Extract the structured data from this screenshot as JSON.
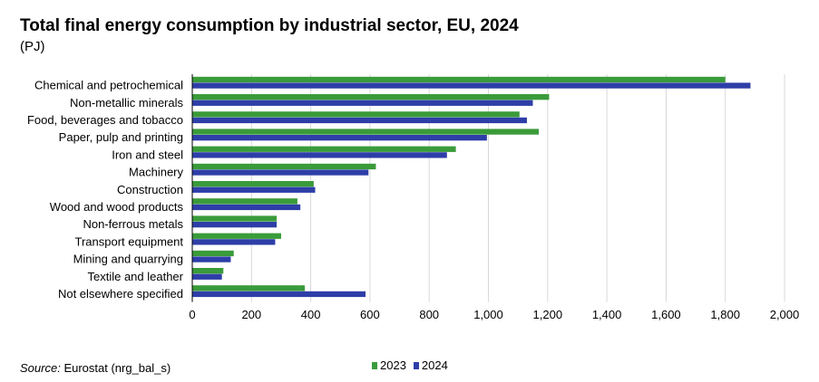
{
  "chart_data": {
    "type": "bar",
    "orientation": "horizontal",
    "title": "Total final energy consumption by industrial sector, EU, 2024",
    "subtitle": "(PJ)",
    "categories": [
      "Chemical and petrochemical",
      "Non-metallic minerals",
      "Food, beverages and tobacco",
      "Paper, pulp and printing",
      "Iron and steel",
      "Machinery",
      "Construction",
      "Wood and wood products",
      "Non-ferrous metals",
      "Transport equipment",
      "Mining and quarrying",
      "Textile and leather",
      "Not elsewhere specified"
    ],
    "series": [
      {
        "name": "2023",
        "color": "#3a9b3a",
        "values": [
          1800,
          1205,
          1105,
          1170,
          890,
          620,
          410,
          355,
          285,
          300,
          140,
          105,
          380
        ]
      },
      {
        "name": "2024",
        "color": "#2e3ea8",
        "values": [
          1885,
          1150,
          1130,
          995,
          860,
          595,
          415,
          365,
          285,
          280,
          130,
          100,
          585
        ]
      }
    ],
    "x_ticks": [
      "0",
      "200",
      "400",
      "600",
      "800",
      "1,000",
      "1,200",
      "1,400",
      "1,600",
      "1,800",
      "2,000"
    ],
    "xlim": [
      0,
      2000
    ],
    "grid": "vertical",
    "legend_position": "bottom-center"
  },
  "source": {
    "label": "Source:",
    "text": "Eurostat (nrg_bal_s)"
  }
}
